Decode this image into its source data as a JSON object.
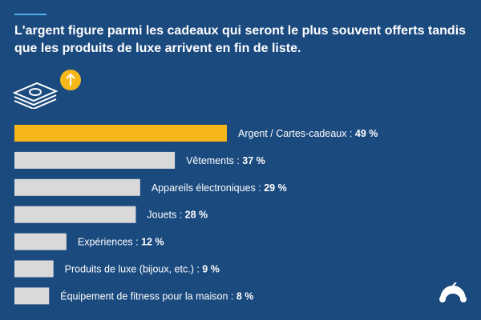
{
  "title": "L'argent figure parmi les cadeaux qui seront le plus souvent offerts tandis que les produits de luxe arrivent en fin de liste.",
  "colors": {
    "background": "#1b4a7f",
    "highlight": "#f5b719",
    "bar": "#d9d9d9",
    "accent_rule": "#4fb3e6"
  },
  "icons": [
    "money-stack-icon",
    "arrow-up-icon",
    "brand-logo-icon"
  ],
  "chart_data": {
    "type": "bar",
    "orientation": "horizontal",
    "categories": [
      "Argent / Cartes-cadeaux",
      "Vêtements",
      "Appareils électroniques",
      "Jouets",
      "Expériences",
      "Produits de luxe (bijoux, etc.)",
      "Équipement de fitness pour la maison"
    ],
    "values": [
      49,
      37,
      29,
      28,
      12,
      9,
      8
    ],
    "value_labels": [
      "49 %",
      "37 %",
      "29 %",
      "28 %",
      "12 %",
      "9 %",
      "8 %"
    ],
    "highlighted_index": 0,
    "unit": "%",
    "grid": false
  }
}
